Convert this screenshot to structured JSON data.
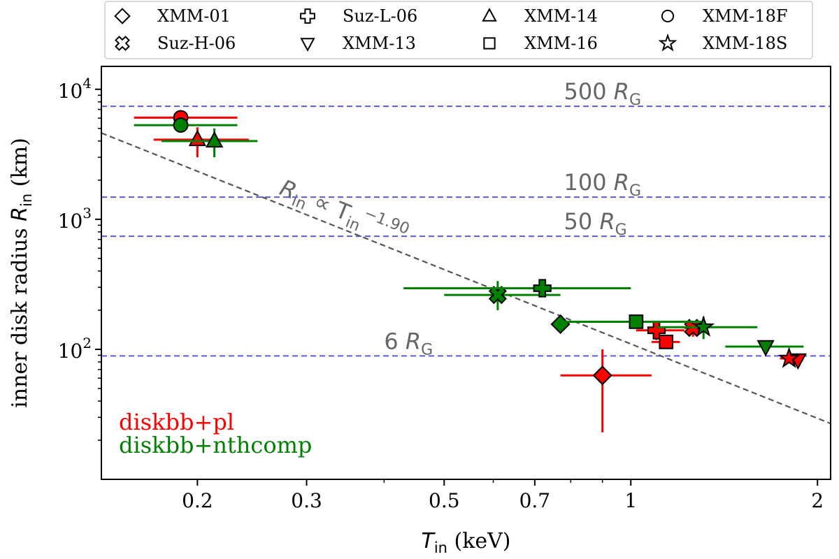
{
  "chart_data": {
    "type": "scatter",
    "xlabel": {
      "main": "T",
      "sub": "in",
      "unit": " (keV)"
    },
    "ylabel": {
      "main": "inner disk radius R",
      "sub": "in",
      "unit": " (km)"
    },
    "xscale": "log",
    "yscale": "log",
    "xlim": [
      0.14,
      2.1
    ],
    "ylim": [
      10,
      15000
    ],
    "x_ticks": [
      {
        "value": 0.2,
        "label": "0.2"
      },
      {
        "value": 0.3,
        "label": "0.3"
      },
      {
        "value": 0.5,
        "label": "0.5"
      },
      {
        "value": 0.7,
        "label": "0.7"
      },
      {
        "value": 1,
        "label": "1"
      },
      {
        "value": 2,
        "label": "2"
      }
    ],
    "y_ticks": [
      {
        "value": 100,
        "base": "10",
        "exp": "2"
      },
      {
        "value": 1000,
        "base": "10",
        "exp": "3"
      },
      {
        "value": 10000,
        "base": "10",
        "exp": "4"
      }
    ],
    "reference_lines": [
      {
        "value": 7400,
        "num": "500 ",
        "sym": "R",
        "sub": "G",
        "label_x": 0.78
      },
      {
        "value": 1480,
        "num": "100 ",
        "sym": "R",
        "sub": "G",
        "label_x": 0.78
      },
      {
        "value": 740,
        "num": "50 ",
        "sym": "R",
        "sub": "G",
        "label_x": 0.78
      },
      {
        "value": 89,
        "num": "6 ",
        "sym": "R",
        "sub": "G",
        "label_x": 0.4
      }
    ],
    "fit_line": {
      "amplitude": 110,
      "slope": -1.9,
      "label": {
        "a": "R",
        "a_sub": "in",
        "mid": " ∝ T",
        "b_sub": "in",
        "exp": "−1.90"
      }
    },
    "legend": {
      "placement": "top",
      "entries": [
        {
          "marker": "diamond",
          "label": "XMM-01"
        },
        {
          "marker": "x",
          "label": "Suz-H-06"
        },
        {
          "marker": "plus",
          "label": "Suz-L-06"
        },
        {
          "marker": "triangle-down",
          "label": "XMM-13"
        },
        {
          "marker": "triangle-up",
          "label": "XMM-14"
        },
        {
          "marker": "square",
          "label": "XMM-16"
        },
        {
          "marker": "circle",
          "label": "XMM-18F"
        },
        {
          "marker": "star",
          "label": "XMM-18S"
        }
      ]
    },
    "methods": [
      {
        "label": "diskbb+pl",
        "color": "#ff0000"
      },
      {
        "label": "diskbb+nthcomp",
        "color": "#008000"
      }
    ],
    "series": [
      {
        "name": "diskbb+pl",
        "color": "#ff0000",
        "points": [
          {
            "obs": "XMM-01",
            "marker": "diamond",
            "x": 0.9,
            "y": 63,
            "xerr": [
              0.77,
              1.08
            ],
            "yerr": [
              23,
              100
            ]
          },
          {
            "obs": "XMM-18F",
            "marker": "circle",
            "x": 0.188,
            "y": 6050,
            "xerr": [
              0.158,
              0.232
            ],
            "yerr": null
          },
          {
            "obs": "XMM-14",
            "marker": "triangle-up",
            "x": 0.2,
            "y": 4100,
            "xerr": [
              0.17,
              0.242
            ],
            "yerr": [
              3000,
              5100
            ]
          },
          {
            "obs": "Suz-L-06",
            "marker": "plus",
            "x": 1.1,
            "y": 140,
            "xerr": [
              1.02,
              1.22
            ],
            "yerr": [
              118,
              162
            ]
          },
          {
            "obs": "XMM-16",
            "marker": "square",
            "x": 1.14,
            "y": 114,
            "xerr": [
              1.08,
              1.2
            ],
            "yerr": null
          },
          {
            "obs": "Suz-H-06",
            "marker": "x",
            "x": 1.26,
            "y": 146,
            "xerr": [
              1.22,
              1.3
            ],
            "yerr": [
              125,
              165
            ]
          },
          {
            "obs": "XMM-13",
            "marker": "triangle-down",
            "x": 1.86,
            "y": 83,
            "xerr": null,
            "yerr": null
          },
          {
            "obs": "XMM-18S",
            "marker": "star",
            "x": 1.8,
            "y": 85,
            "xerr": [
              1.74,
              1.86
            ],
            "yerr": null
          }
        ]
      },
      {
        "name": "diskbb+nthcomp",
        "color": "#008000",
        "points": [
          {
            "obs": "XMM-01",
            "marker": "diamond",
            "x": 0.77,
            "y": 156,
            "xerr": null,
            "yerr": null
          },
          {
            "obs": "Suz-H-06",
            "marker": "x",
            "x": 0.61,
            "y": 262,
            "xerr": [
              0.5,
              0.77
            ],
            "yerr": [
              200,
              335
            ]
          },
          {
            "obs": "Suz-L-06",
            "marker": "plus",
            "x": 0.72,
            "y": 295,
            "xerr": [
              0.43,
              1.0
            ],
            "yerr": [
              255,
              335
            ]
          },
          {
            "obs": "XMM-16",
            "marker": "square",
            "x": 1.02,
            "y": 163,
            "xerr": [
              0.78,
              1.3
            ],
            "yerr": null
          },
          {
            "obs": "XMM-18S",
            "marker": "star",
            "x": 1.31,
            "y": 148,
            "xerr": [
              1.1,
              1.6
            ],
            "yerr": [
              120,
              178
            ]
          },
          {
            "obs": "XMM-13",
            "marker": "triangle-down",
            "x": 1.65,
            "y": 105,
            "xerr": [
              1.42,
              1.9
            ],
            "yerr": null
          },
          {
            "obs": "XMM-18F",
            "marker": "circle",
            "x": 0.188,
            "y": 5300,
            "xerr": [
              0.158,
              0.232
            ],
            "yerr": null
          },
          {
            "obs": "XMM-14",
            "marker": "triangle-up",
            "x": 0.213,
            "y": 4000,
            "xerr": [
              0.175,
              0.25
            ],
            "yerr": [
              3000,
              5000
            ]
          }
        ]
      }
    ]
  }
}
